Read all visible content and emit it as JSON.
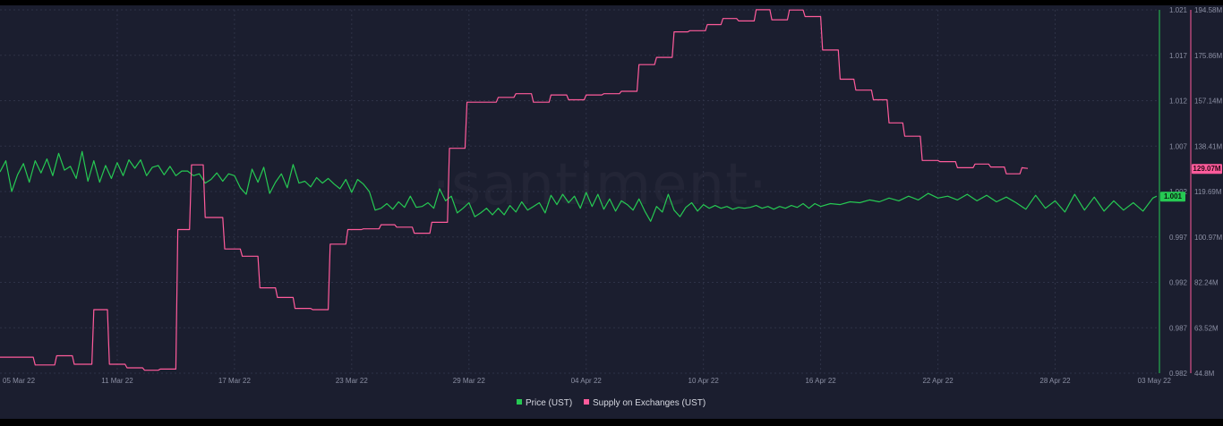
{
  "watermark": "·santiment·",
  "chart_data": {
    "type": "line",
    "title": "",
    "x_dates": [
      "05 Mar 22",
      "11 Mar 22",
      "17 Mar 22",
      "23 Mar 22",
      "29 Mar 22",
      "04 Apr 22",
      "10 Apr 22",
      "16 Apr 22",
      "22 Apr 22",
      "28 Apr 22",
      "03 May 22"
    ],
    "x_range": [
      0,
      59.2
    ],
    "price_axis": {
      "ticks": [
        "1.021",
        "1.017",
        "1.012",
        "1.007",
        "1.002",
        "0.997",
        "0.992",
        "0.987",
        "0.982"
      ],
      "range": [
        0.982,
        1.021
      ],
      "color": "#26c953"
    },
    "supply_axis": {
      "ticks": [
        "194.58M",
        "175.86M",
        "157.14M",
        "138.41M",
        "119.69M",
        "100.97M",
        "82.24M",
        "63.52M",
        "44.8M"
      ],
      "range": [
        44.8,
        194.58
      ],
      "color": "#ff5b9b"
    },
    "current_price_label": "1.001",
    "current_supply_label": "129.07M",
    "legend": [
      {
        "label": "Price (UST)",
        "color": "#26c953"
      },
      {
        "label": "Supply on Exchanges (UST)",
        "color": "#ff5b9b"
      }
    ],
    "series": [
      {
        "name": "Price (UST)",
        "color": "#26c953",
        "axis": "left",
        "points": [
          [
            0,
            1.0036
          ],
          [
            0.3,
            1.0048
          ],
          [
            0.6,
            1.0015
          ],
          [
            0.9,
            1.0033
          ],
          [
            1.2,
            1.0045
          ],
          [
            1.5,
            1.0025
          ],
          [
            1.8,
            1.0048
          ],
          [
            2.1,
            1.0035
          ],
          [
            2.4,
            1.005
          ],
          [
            2.7,
            1.0032
          ],
          [
            3.0,
            1.0056
          ],
          [
            3.3,
            1.0038
          ],
          [
            3.6,
            1.0042
          ],
          [
            3.9,
            1.0029
          ],
          [
            4.2,
            1.0058
          ],
          [
            4.5,
            1.0026
          ],
          [
            4.8,
            1.0048
          ],
          [
            5.1,
            1.0025
          ],
          [
            5.4,
            1.0043
          ],
          [
            5.7,
            1.0029
          ],
          [
            6.0,
            1.0046
          ],
          [
            6.3,
            1.0032
          ],
          [
            6.6,
            1.0049
          ],
          [
            6.9,
            1.004
          ],
          [
            7.2,
            1.0049
          ],
          [
            7.5,
            1.0032
          ],
          [
            7.8,
            1.0041
          ],
          [
            8.1,
            1.0043
          ],
          [
            8.4,
            1.0033
          ],
          [
            8.7,
            1.0042
          ],
          [
            9.0,
            1.0032
          ],
          [
            9.3,
            1.0037
          ],
          [
            9.6,
            1.0037
          ],
          [
            9.9,
            1.0032
          ],
          [
            10.2,
            1.0034
          ],
          [
            10.5,
            1.0024
          ],
          [
            10.8,
            1.0028
          ],
          [
            11.1,
            1.0035
          ],
          [
            11.4,
            1.0026
          ],
          [
            11.7,
            1.0034
          ],
          [
            12.0,
            1.0032
          ],
          [
            12.3,
            1.0019
          ],
          [
            12.6,
            1.0012
          ],
          [
            12.9,
            1.0039
          ],
          [
            13.2,
            1.0025
          ],
          [
            13.5,
            1.0041
          ],
          [
            13.8,
            1.0013
          ],
          [
            14.1,
            1.0025
          ],
          [
            14.4,
            1.0034
          ],
          [
            14.7,
            1.0019
          ],
          [
            15.0,
            1.0044
          ],
          [
            15.3,
            1.0024
          ],
          [
            15.6,
            1.0026
          ],
          [
            15.9,
            1.002
          ],
          [
            16.2,
            1.003
          ],
          [
            16.5,
            1.0024
          ],
          [
            16.8,
            1.0029
          ],
          [
            17.1,
            1.0023
          ],
          [
            17.4,
            1.0018
          ],
          [
            17.7,
            1.0028
          ],
          [
            18.0,
            1.0014
          ],
          [
            18.3,
            1.0028
          ],
          [
            18.6,
            1.0023
          ],
          [
            18.9,
            1.0015
          ],
          [
            19.2,
            0.9995
          ],
          [
            19.5,
            0.9997
          ],
          [
            19.8,
            1.0002
          ],
          [
            20.1,
            0.9996
          ],
          [
            20.4,
            1.0004
          ],
          [
            20.7,
            0.9998
          ],
          [
            21.0,
            1.001
          ],
          [
            21.3,
            0.9998
          ],
          [
            21.6,
            0.9999
          ],
          [
            21.9,
            1.0003
          ],
          [
            22.2,
            0.9997
          ],
          [
            22.5,
            1.0018
          ],
          [
            22.8,
            1.0005
          ],
          [
            23.1,
            1.001
          ],
          [
            23.4,
            0.9992
          ],
          [
            23.7,
            0.9997
          ],
          [
            24.0,
            1.0003
          ],
          [
            24.3,
            0.9988
          ],
          [
            24.6,
            0.9992
          ],
          [
            24.9,
            0.9997
          ],
          [
            25.2,
            0.999
          ],
          [
            25.5,
            0.9997
          ],
          [
            25.8,
            0.999
          ],
          [
            26.1,
            1.0
          ],
          [
            26.4,
            0.9993
          ],
          [
            26.7,
            1.0004
          ],
          [
            27.0,
            0.9995
          ],
          [
            27.3,
            0.9999
          ],
          [
            27.6,
            1.0003
          ],
          [
            27.9,
            0.9992
          ],
          [
            28.2,
            1.0011
          ],
          [
            28.5,
            1.0001
          ],
          [
            28.8,
            1.0012
          ],
          [
            29.1,
            1.0003
          ],
          [
            29.4,
            1.001
          ],
          [
            29.7,
            0.9997
          ],
          [
            30.0,
            1.0014
          ],
          [
            30.3,
            0.9999
          ],
          [
            30.6,
            1.0012
          ],
          [
            30.9,
            0.9996
          ],
          [
            31.2,
            1.0007
          ],
          [
            31.5,
            0.9994
          ],
          [
            31.8,
            1.0005
          ],
          [
            32.1,
            1.0001
          ],
          [
            32.4,
            0.9995
          ],
          [
            32.7,
            1.0007
          ],
          [
            33.0,
            0.9994
          ],
          [
            33.3,
            0.9983
          ],
          [
            33.6,
            0.9999
          ],
          [
            33.9,
            0.9993
          ],
          [
            34.2,
            1.0012
          ],
          [
            34.5,
            0.9995
          ],
          [
            34.8,
            0.9988
          ],
          [
            35.1,
            0.9998
          ],
          [
            35.4,
            1.0003
          ],
          [
            35.7,
            0.9994
          ],
          [
            36.0,
            1.0001
          ],
          [
            36.3,
            0.9997
          ],
          [
            36.6,
            1.0
          ],
          [
            36.9,
            0.9997
          ],
          [
            37.2,
            0.9999
          ],
          [
            37.5,
            0.9996
          ],
          [
            37.8,
            0.9998
          ],
          [
            38.1,
            0.9997
          ],
          [
            38.4,
            0.9998
          ],
          [
            38.7,
            1.0
          ],
          [
            39.0,
            0.9997
          ],
          [
            39.3,
            0.9999
          ],
          [
            39.6,
            0.9996
          ],
          [
            39.9,
            0.9999
          ],
          [
            40.2,
            0.9997
          ],
          [
            40.5,
            1.0
          ],
          [
            40.8,
            0.9998
          ],
          [
            41.1,
            1.0002
          ],
          [
            41.4,
            0.9997
          ],
          [
            41.7,
            1.0002
          ],
          [
            42.0,
            0.9999
          ],
          [
            42.5,
            1.0002
          ],
          [
            43.0,
            1.0001
          ],
          [
            43.5,
            1.0004
          ],
          [
            44.0,
            1.0003
          ],
          [
            44.5,
            1.0006
          ],
          [
            45.0,
            1.0004
          ],
          [
            45.5,
            1.0008
          ],
          [
            46.0,
            1.0005
          ],
          [
            46.5,
            1.001
          ],
          [
            47.0,
            1.0006
          ],
          [
            47.5,
            1.0013
          ],
          [
            48.0,
            1.0008
          ],
          [
            48.5,
            1.001
          ],
          [
            49.0,
            1.0006
          ],
          [
            49.5,
            1.0012
          ],
          [
            50.0,
            1.0005
          ],
          [
            50.5,
            1.0011
          ],
          [
            51.0,
            1.0004
          ],
          [
            51.5,
            1.0009
          ],
          [
            52.0,
            1.0003
          ],
          [
            52.5,
            0.9996
          ],
          [
            53.0,
            1.0011
          ],
          [
            53.5,
            0.9997
          ],
          [
            54.0,
            1.0005
          ],
          [
            54.5,
            0.9993
          ],
          [
            55.0,
            1.0012
          ],
          [
            55.5,
            0.9995
          ],
          [
            56.0,
            1.0009
          ],
          [
            56.5,
            0.9994
          ],
          [
            57.0,
            1.0005
          ],
          [
            57.5,
            0.9995
          ],
          [
            58.0,
            1.0003
          ],
          [
            58.5,
            0.9994
          ],
          [
            59.0,
            1.0008
          ],
          [
            59.2,
            1.001
          ]
        ]
      },
      {
        "name": "Supply on Exchanges (UST)",
        "color": "#ff5b9b",
        "axis": "right",
        "points": [
          [
            0,
            51.4
          ],
          [
            1.7,
            51.4
          ],
          [
            1.8,
            48.2
          ],
          [
            2.8,
            48.2
          ],
          [
            2.9,
            52.0
          ],
          [
            3.7,
            52.0
          ],
          [
            3.8,
            48.5
          ],
          [
            4.7,
            48.5
          ],
          [
            4.8,
            71.0
          ],
          [
            5.5,
            71.0
          ],
          [
            5.6,
            48.5
          ],
          [
            6.4,
            48.5
          ],
          [
            6.5,
            47.0
          ],
          [
            7.3,
            47.0
          ],
          [
            7.4,
            46.0
          ],
          [
            8.1,
            46.0
          ],
          [
            8.2,
            46.5
          ],
          [
            9.0,
            46.5
          ],
          [
            9.1,
            104.0
          ],
          [
            9.7,
            104.0
          ],
          [
            9.8,
            130.7
          ],
          [
            10.4,
            130.7
          ],
          [
            10.5,
            109.0
          ],
          [
            11.4,
            109.0
          ],
          [
            11.5,
            96.0
          ],
          [
            12.3,
            96.0
          ],
          [
            12.4,
            93.0
          ],
          [
            13.2,
            93.0
          ],
          [
            13.3,
            80.0
          ],
          [
            14.1,
            80.0
          ],
          [
            14.2,
            76.0
          ],
          [
            15.0,
            76.0
          ],
          [
            15.1,
            71.5
          ],
          [
            15.9,
            71.5
          ],
          [
            16.0,
            71.0
          ],
          [
            16.8,
            71.0
          ],
          [
            16.9,
            98.0
          ],
          [
            17.7,
            98.0
          ],
          [
            17.8,
            104.0
          ],
          [
            18.5,
            104.0
          ],
          [
            18.6,
            104.3
          ],
          [
            19.4,
            104.3
          ],
          [
            19.5,
            106.0
          ],
          [
            20.2,
            106.0
          ],
          [
            20.3,
            105.0
          ],
          [
            21.1,
            105.0
          ],
          [
            21.2,
            102.5
          ],
          [
            22.0,
            102.5
          ],
          [
            22.1,
            107.0
          ],
          [
            22.9,
            107.0
          ],
          [
            23.0,
            137.5
          ],
          [
            23.8,
            137.5
          ],
          [
            23.9,
            156.5
          ],
          [
            25.4,
            156.5
          ],
          [
            25.5,
            158.5
          ],
          [
            26.3,
            158.5
          ],
          [
            26.4,
            160.0
          ],
          [
            27.2,
            160.0
          ],
          [
            27.3,
            156.5
          ],
          [
            28.1,
            156.5
          ],
          [
            28.2,
            159.5
          ],
          [
            29.0,
            159.5
          ],
          [
            29.1,
            157.5
          ],
          [
            29.9,
            157.5
          ],
          [
            30.0,
            159.5
          ],
          [
            30.8,
            159.5
          ],
          [
            30.9,
            160.0
          ],
          [
            31.7,
            160.0
          ],
          [
            31.8,
            161.0
          ],
          [
            32.6,
            161.0
          ],
          [
            32.7,
            172.0
          ],
          [
            33.5,
            172.0
          ],
          [
            33.6,
            175.0
          ],
          [
            34.4,
            175.0
          ],
          [
            34.5,
            185.5
          ],
          [
            35.2,
            185.5
          ],
          [
            35.3,
            186.0
          ],
          [
            36.1,
            186.0
          ],
          [
            36.2,
            188.5
          ],
          [
            36.9,
            188.5
          ],
          [
            37.0,
            191.0
          ],
          [
            37.7,
            191.0
          ],
          [
            37.8,
            190.0
          ],
          [
            38.6,
            190.0
          ],
          [
            38.7,
            194.6
          ],
          [
            39.4,
            194.6
          ],
          [
            39.5,
            190.5
          ],
          [
            40.3,
            190.5
          ],
          [
            40.4,
            194.5
          ],
          [
            41.1,
            194.5
          ],
          [
            41.2,
            191.8
          ],
          [
            42.0,
            191.8
          ],
          [
            42.1,
            178.0
          ],
          [
            42.9,
            178.0
          ],
          [
            43.0,
            166.0
          ],
          [
            43.7,
            166.0
          ],
          [
            43.8,
            161.5
          ],
          [
            44.6,
            161.5
          ],
          [
            44.7,
            157.5
          ],
          [
            45.4,
            157.5
          ],
          [
            45.5,
            148.0
          ],
          [
            46.2,
            148.0
          ],
          [
            46.3,
            142.5
          ],
          [
            47.1,
            142.5
          ],
          [
            47.2,
            132.5
          ],
          [
            48.0,
            132.5
          ],
          [
            48.1,
            132.0
          ],
          [
            48.9,
            132.0
          ],
          [
            49.0,
            129.5
          ],
          [
            49.8,
            129.5
          ],
          [
            49.9,
            131.0
          ],
          [
            50.6,
            131.0
          ],
          [
            50.7,
            129.8
          ],
          [
            51.4,
            129.8
          ],
          [
            51.5,
            127.0
          ],
          [
            52.2,
            127.0
          ],
          [
            52.3,
            129.5
          ],
          [
            52.6,
            129.2
          ]
        ]
      }
    ]
  }
}
